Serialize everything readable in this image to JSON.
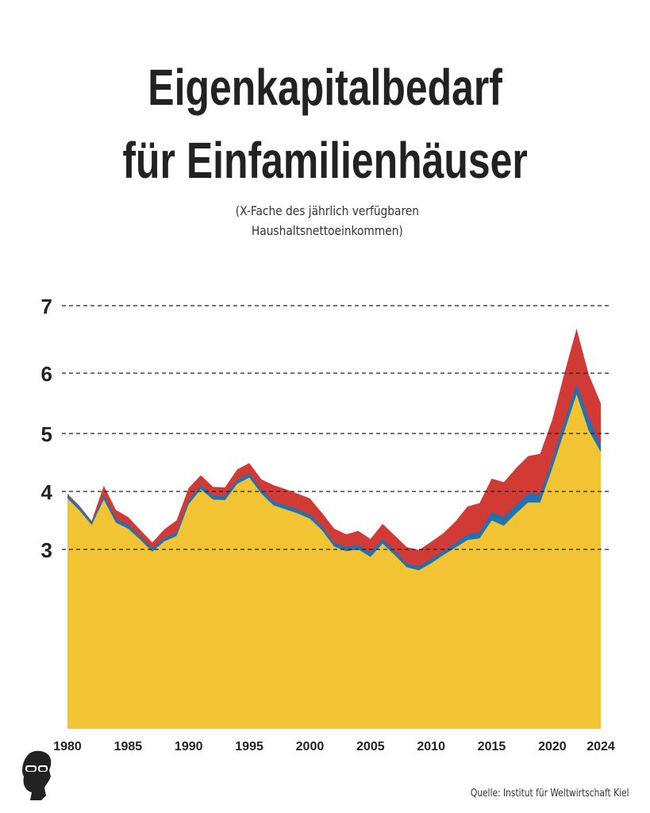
{
  "header": {
    "title_line1": "Eigenkapitalbedarf",
    "title_line2": "für Einfamilienhäuser",
    "subtitle_line1": "(X-Fache des jährlich verfügbaren",
    "subtitle_line2": "Haushaltsnettoeinkommen)"
  },
  "footer": {
    "source": "Quelle: Institut für Weltwirtschaft Kiel"
  },
  "colors": {
    "series_yellow": "#f2c333",
    "series_blue": "#2271b1",
    "series_red": "#d23a35",
    "grid": "#222222"
  },
  "chart_data": {
    "type": "area",
    "title": "Eigenkapitalbedarf für Einfamilienhäuser",
    "subtitle": "(X-Fache des jährlich verfügbaren Haushaltsnettoeinkommen)",
    "xlabel": "",
    "ylabel": "",
    "x_ticks": [
      "1980",
      "1985",
      "1990",
      "1995",
      "2000",
      "2005",
      "2010",
      "2015",
      "2020",
      "2024"
    ],
    "y_ticks": [
      "3",
      "4",
      "5",
      "6",
      "7"
    ],
    "y_tick_values": [
      3,
      4,
      5,
      6,
      7
    ],
    "grid": "horizontal dashed",
    "x": [
      1980,
      1981,
      1982,
      1983,
      1984,
      1985,
      1986,
      1987,
      1988,
      1989,
      1990,
      1991,
      1992,
      1993,
      1994,
      1995,
      1996,
      1997,
      1998,
      1999,
      2000,
      2001,
      2002,
      2003,
      2004,
      2005,
      2006,
      2007,
      2008,
      2009,
      2010,
      2011,
      2012,
      2013,
      2014,
      2015,
      2016,
      2017,
      2018,
      2019,
      2020,
      2021,
      2022,
      2023,
      2024
    ],
    "series": [
      {
        "name": "yellow",
        "values": [
          3.88,
          3.67,
          3.42,
          3.86,
          3.46,
          3.36,
          3.17,
          2.96,
          3.14,
          3.23,
          3.78,
          4.04,
          3.86,
          3.85,
          4.13,
          4.24,
          3.96,
          3.76,
          3.69,
          3.62,
          3.53,
          3.33,
          3.05,
          2.97,
          3.0,
          2.87,
          3.1,
          2.9,
          2.69,
          2.64,
          2.76,
          2.9,
          3.03,
          3.16,
          3.19,
          3.5,
          3.41,
          3.62,
          3.81,
          3.81,
          4.4,
          5.04,
          5.65,
          5.05,
          4.68
        ]
      },
      {
        "name": "blue",
        "values": [
          3.94,
          3.73,
          3.47,
          3.94,
          3.53,
          3.43,
          3.23,
          3.02,
          3.2,
          3.3,
          3.85,
          4.11,
          3.93,
          3.92,
          4.2,
          4.31,
          4.03,
          3.83,
          3.76,
          3.69,
          3.6,
          3.4,
          3.12,
          3.04,
          3.08,
          2.95,
          3.18,
          2.98,
          2.76,
          2.71,
          2.84,
          2.97,
          3.11,
          3.26,
          3.3,
          3.64,
          3.56,
          3.76,
          3.96,
          3.95,
          4.55,
          5.2,
          5.82,
          5.27,
          4.8
        ]
      },
      {
        "name": "red",
        "values": [
          3.96,
          3.75,
          3.49,
          4.1,
          3.68,
          3.56,
          3.34,
          3.12,
          3.35,
          3.5,
          4.06,
          4.28,
          4.08,
          4.07,
          4.38,
          4.49,
          4.21,
          4.11,
          4.04,
          3.96,
          3.88,
          3.63,
          3.36,
          3.26,
          3.32,
          3.18,
          3.44,
          3.24,
          3.04,
          2.99,
          3.13,
          3.28,
          3.48,
          3.74,
          3.8,
          4.22,
          4.16,
          4.4,
          4.61,
          4.65,
          5.23,
          6.0,
          6.66,
          5.98,
          5.5
        ]
      }
    ]
  }
}
